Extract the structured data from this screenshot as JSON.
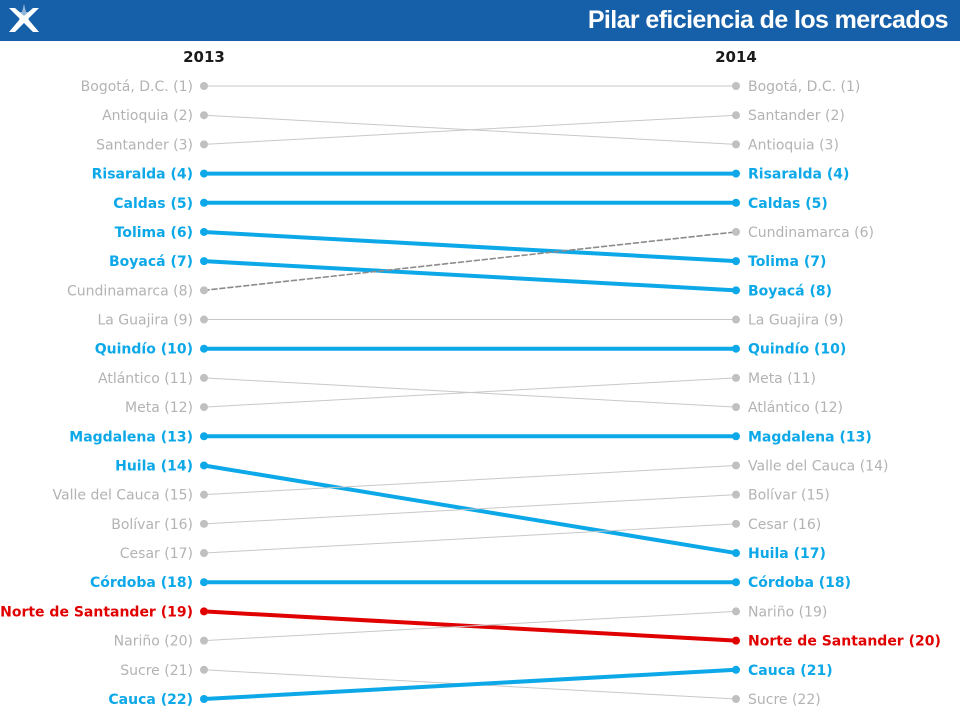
{
  "header": {
    "title": "Pilar eficiencia de los mercados",
    "background_color": "#1560a8",
    "logo_icon": "star-chevron-logo"
  },
  "chart_data": {
    "type": "slope",
    "title": "Pilar eficiencia de los mercados",
    "left_year": "2013",
    "right_year": "2014",
    "colors": {
      "neutral_text": "#b3b3b3",
      "neutral_line": "#c8c8c8",
      "neutral_dot": "#c0c0c0",
      "highlight": "#0da8e8",
      "decline": "#e00000",
      "dashed": "#8c8c8c"
    },
    "series": [
      {
        "name": "Bogotá, D.C.",
        "rank_2013": 1,
        "rank_2014": 1,
        "style": "neutral"
      },
      {
        "name": "Antioquia",
        "rank_2013": 2,
        "rank_2014": 3,
        "style": "neutral"
      },
      {
        "name": "Santander",
        "rank_2013": 3,
        "rank_2014": 2,
        "style": "neutral"
      },
      {
        "name": "Risaralda",
        "rank_2013": 4,
        "rank_2014": 4,
        "style": "highlight"
      },
      {
        "name": "Caldas",
        "rank_2013": 5,
        "rank_2014": 5,
        "style": "highlight"
      },
      {
        "name": "Tolima",
        "rank_2013": 6,
        "rank_2014": 7,
        "style": "highlight"
      },
      {
        "name": "Boyacá",
        "rank_2013": 7,
        "rank_2014": 8,
        "style": "highlight"
      },
      {
        "name": "Cundinamarca",
        "rank_2013": 8,
        "rank_2014": 6,
        "style": "dashed"
      },
      {
        "name": "La Guajira",
        "rank_2013": 9,
        "rank_2014": 9,
        "style": "neutral"
      },
      {
        "name": "Quindío",
        "rank_2013": 10,
        "rank_2014": 10,
        "style": "highlight"
      },
      {
        "name": "Atlántico",
        "rank_2013": 11,
        "rank_2014": 12,
        "style": "neutral"
      },
      {
        "name": "Meta",
        "rank_2013": 12,
        "rank_2014": 11,
        "style": "neutral"
      },
      {
        "name": "Magdalena",
        "rank_2013": 13,
        "rank_2014": 13,
        "style": "highlight"
      },
      {
        "name": "Huila",
        "rank_2013": 14,
        "rank_2014": 17,
        "style": "highlight"
      },
      {
        "name": "Valle del Cauca",
        "rank_2013": 15,
        "rank_2014": 14,
        "style": "neutral"
      },
      {
        "name": "Bolívar",
        "rank_2013": 16,
        "rank_2014": 15,
        "style": "neutral"
      },
      {
        "name": "Cesar",
        "rank_2013": 17,
        "rank_2014": 16,
        "style": "neutral"
      },
      {
        "name": "Córdoba",
        "rank_2013": 18,
        "rank_2014": 18,
        "style": "highlight"
      },
      {
        "name": "Norte de Santander",
        "rank_2013": 19,
        "rank_2014": 20,
        "style": "decline"
      },
      {
        "name": "Nariño",
        "rank_2013": 20,
        "rank_2014": 19,
        "style": "neutral"
      },
      {
        "name": "Sucre",
        "rank_2013": 21,
        "rank_2014": 22,
        "style": "neutral"
      },
      {
        "name": "Cauca",
        "rank_2013": 22,
        "rank_2014": 21,
        "style": "highlight"
      }
    ]
  }
}
